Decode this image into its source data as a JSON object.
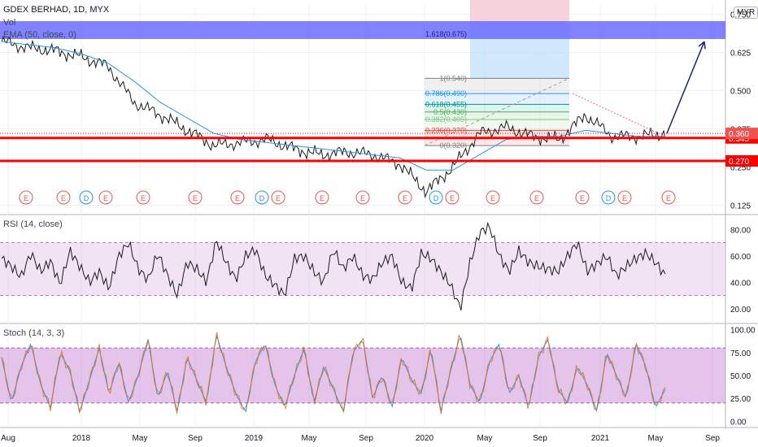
{
  "header": {
    "symbol": "GDEX BERHAD, 1D, MYX",
    "volume_label": "Vol",
    "ema_label": "EMA (50, close, 0)",
    "currency": "MYR"
  },
  "colors": {
    "price_line": "#1a1a1a",
    "ema_line": "#2196f3",
    "support_line": "#ff0000",
    "fib_band_top": "#6a6cff",
    "rsi_fill": "#e1bee7",
    "stoch_fill": "#ce93d8",
    "stoch_k": "#2196f3",
    "stoch_d": "#ef6c00",
    "earnings_badge": "#ef5350",
    "dividend_badge": "#2196f3",
    "trendline": "#f06292",
    "arrow": "#1a237e"
  },
  "chart_data": [
    {
      "type": "line",
      "name": "price",
      "x_ticks": [
        "Aug",
        "2018",
        "May",
        "Sep",
        "2019",
        "May",
        "Sep",
        "2020",
        "May",
        "Sep",
        "2021",
        "May",
        "Sep"
      ],
      "y_ticks": [
        "0.750",
        "0.625",
        "0.500",
        "0.375",
        "0.250",
        "0.125"
      ],
      "x": [
        "2017-08",
        "2017-10",
        "2017-12",
        "2018-02",
        "2018-04",
        "2018-06",
        "2018-08",
        "2018-10",
        "2018-12",
        "2019-02",
        "2019-04",
        "2019-06",
        "2019-08",
        "2019-10",
        "2019-12",
        "2020-02",
        "2020-03",
        "2020-04",
        "2020-05",
        "2020-06",
        "2020-07",
        "2020-09",
        "2020-11",
        "2021-01",
        "2021-03",
        "2021-05"
      ],
      "y": [
        0.66,
        0.64,
        0.63,
        0.61,
        0.58,
        0.46,
        0.42,
        0.37,
        0.32,
        0.33,
        0.34,
        0.31,
        0.29,
        0.3,
        0.29,
        0.26,
        0.17,
        0.25,
        0.36,
        0.38,
        0.35,
        0.34,
        0.42,
        0.35,
        0.35,
        0.36
      ],
      "ema": [
        0.66,
        0.65,
        0.64,
        0.62,
        0.59,
        0.53,
        0.46,
        0.41,
        0.36,
        0.34,
        0.33,
        0.32,
        0.31,
        0.3,
        0.29,
        0.28,
        0.24,
        0.24,
        0.29,
        0.34,
        0.35,
        0.35,
        0.37,
        0.36,
        0.35,
        0.35
      ],
      "horizontal_levels": [
        {
          "price_label": "0.345",
          "value": 0.345
        },
        {
          "price_label": "0.270",
          "value": 0.27
        }
      ],
      "current_price_label": "0.360",
      "fib_levels": [
        {
          "label": "1(0.540)",
          "value": 0.54,
          "color": "#808080"
        },
        {
          "label": "0.786(0.490)",
          "value": 0.49,
          "color": "#2196f3"
        },
        {
          "label": "0.618(0.455)",
          "value": 0.455,
          "color": "#009688"
        },
        {
          "label": "0.5(0.430)",
          "value": 0.43,
          "color": "#4caf50"
        },
        {
          "label": "0.382(0.405)",
          "value": 0.405,
          "color": "#81c784"
        },
        {
          "label": "0.236(0.370)",
          "value": 0.37,
          "color": "#f44336"
        },
        {
          "label": "0(0.320)",
          "value": 0.32,
          "color": "#808080"
        }
      ],
      "fib_extension_label": "1.618(0.675)",
      "events": [
        "E",
        "E",
        "D",
        "E",
        "E",
        "E",
        "E",
        "D",
        "E",
        "E",
        "E",
        "E",
        "D",
        "E",
        "E",
        "E",
        "E",
        "D",
        "E",
        "E"
      ]
    },
    {
      "type": "line",
      "name": "rsi",
      "title": "RSI (14, close)",
      "y_ticks": [
        "80.00",
        "60.00",
        "40.00",
        "20.00"
      ],
      "band": [
        30,
        70
      ],
      "values": [
        58,
        52,
        44,
        62,
        48,
        56,
        38,
        64,
        52,
        40,
        48,
        35,
        60,
        70,
        50,
        42,
        62,
        45,
        30,
        55,
        50,
        40,
        72,
        55,
        42,
        60,
        65,
        45,
        38,
        30,
        58,
        60,
        48,
        40,
        65,
        50,
        60,
        45,
        42,
        55,
        60,
        40,
        35,
        62,
        58,
        48,
        38,
        20,
        55,
        78,
        82,
        60,
        48,
        64,
        55,
        52,
        50,
        48,
        60,
        70,
        48,
        54,
        60,
        45,
        52,
        58,
        62,
        55,
        45
      ]
    },
    {
      "type": "line",
      "name": "stoch",
      "title": "Stoch (14, 3, 3)",
      "y_ticks": [
        "100.00",
        "75.00",
        "50.00",
        "25.00",
        "0.00"
      ],
      "band": [
        20,
        80
      ],
      "values": [
        70,
        20,
        60,
        85,
        40,
        15,
        75,
        55,
        10,
        45,
        80,
        30,
        65,
        20,
        50,
        90,
        25,
        55,
        10,
        70,
        45,
        20,
        95,
        60,
        30,
        10,
        65,
        85,
        40,
        15,
        50,
        80,
        20,
        60,
        35,
        10,
        75,
        90,
        25,
        50,
        15,
        70,
        45,
        30,
        80,
        10,
        55,
        95,
        40,
        20,
        65,
        85,
        30,
        50,
        15,
        70,
        90,
        35,
        20,
        60,
        40,
        10,
        75,
        50,
        25,
        85,
        60,
        15,
        35
      ]
    }
  ]
}
